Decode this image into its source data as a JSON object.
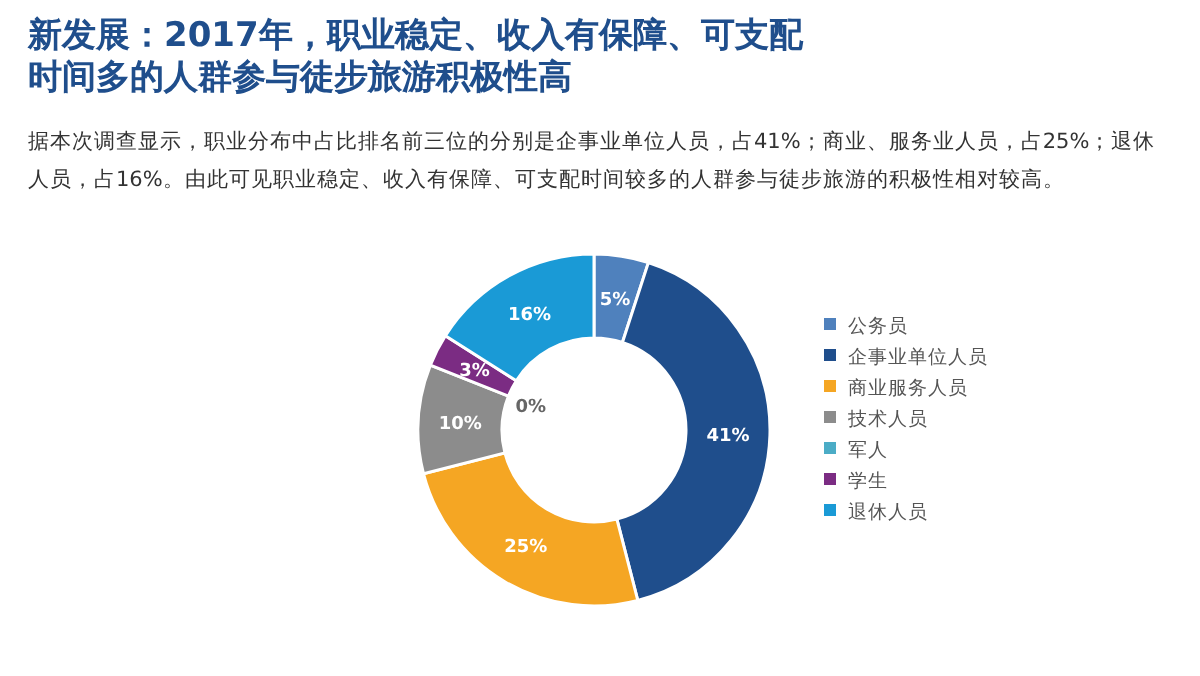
{
  "chart_data": {
    "type": "donut",
    "title": "新发展：2017年，职业稳定、收入有保障、可支配时间多的人群参与徒步旅游积极性高",
    "subtitle": "据本次调查显示，职业分布中占比排名前三位的分别是企事业单位人员，占41%；商业、服务业人员，占25%；退休人员，占16%。由此可见职业稳定、收入有保障、可支配时间较多的人群参与徒步旅游的积极性相对较高。",
    "categories": [
      "公务员",
      "企事业单位人员",
      "商业服务人员",
      "技术人员",
      "军人",
      "学生",
      "退休人员"
    ],
    "values": [
      5,
      41,
      25,
      10,
      0,
      3,
      16
    ],
    "colors": [
      "#4f81bd",
      "#1f4e8c",
      "#f5a623",
      "#8c8c8c",
      "#4bacc6",
      "#7b2c83",
      "#1a9ad6"
    ],
    "value_labels": [
      "5%",
      "41%",
      "25%",
      "10%",
      "0%",
      "3%",
      "16%"
    ],
    "legend": "right"
  }
}
